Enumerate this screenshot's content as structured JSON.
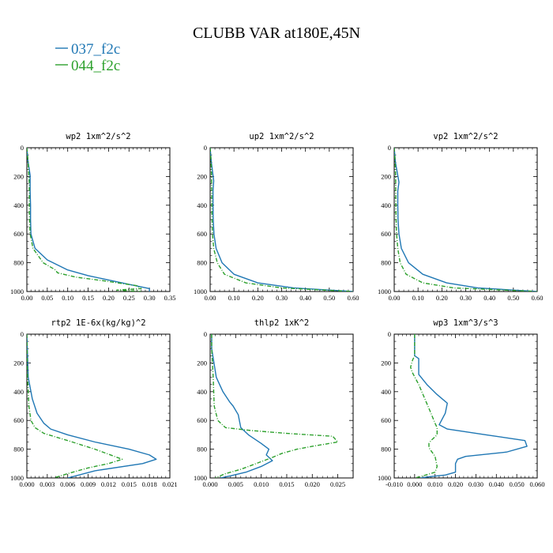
{
  "figure": {
    "title": "CLUBB VAR at180E,45N",
    "legend": [
      {
        "name": "037_f2c",
        "color": "#1f77b4"
      },
      {
        "name": "044_f2c",
        "color": "#2ca02c"
      }
    ]
  },
  "chart_data": [
    {
      "type": "line",
      "title": "wp2   1xm^2/s^2",
      "ylim": [
        1000,
        0
      ],
      "xlim": [
        0,
        0.35
      ],
      "xticks": [
        "0.00",
        "0.05",
        "0.10",
        "0.15",
        "0.20",
        "0.25",
        "0.30",
        "0.35"
      ],
      "yticks": [
        "0",
        "200",
        "400",
        "600",
        "800",
        "1000"
      ],
      "series": [
        {
          "name": "037_f2c",
          "color": "#1f77b4",
          "dash": false,
          "x": [
            0,
            0.003,
            0.008,
            0.008,
            0.008,
            0.009,
            0.009,
            0.01,
            0.02,
            0.05,
            0.1,
            0.15,
            0.2,
            0.25,
            0.3,
            0.3
          ],
          "y": [
            0,
            100,
            190,
            240,
            300,
            400,
            500,
            600,
            700,
            780,
            850,
            890,
            920,
            950,
            980,
            1000
          ]
        },
        {
          "name": "044_f2c",
          "color": "#2ca02c",
          "dash": true,
          "x": [
            0,
            0.003,
            0.005,
            0.006,
            0.006,
            0.006,
            0.008,
            0.015,
            0.04,
            0.07,
            0.075,
            0.12,
            0.2,
            0.27,
            0.28,
            0.22,
            0.28
          ],
          "y": [
            0,
            100,
            200,
            250,
            300,
            450,
            600,
            700,
            800,
            850,
            870,
            900,
            930,
            960,
            980,
            990,
            1000
          ]
        }
      ]
    },
    {
      "type": "line",
      "title": "up2   1xm^2/s^2",
      "ylim": [
        1000,
        0
      ],
      "xlim": [
        0,
        0.6
      ],
      "xticks": [
        "0.00",
        "0.10",
        "0.20",
        "0.30",
        "0.40",
        "0.50",
        "0.60"
      ],
      "yticks": [
        "0",
        "200",
        "400",
        "600",
        "800",
        "1000"
      ],
      "series": [
        {
          "name": "037_f2c",
          "color": "#1f77b4",
          "dash": false,
          "x": [
            0,
            0.005,
            0.015,
            0.012,
            0.012,
            0.013,
            0.016,
            0.025,
            0.05,
            0.1,
            0.2,
            0.35,
            0.6
          ],
          "y": [
            0,
            100,
            230,
            300,
            400,
            500,
            600,
            700,
            800,
            880,
            940,
            975,
            1000
          ]
        },
        {
          "name": "044_f2c",
          "color": "#2ca02c",
          "dash": true,
          "x": [
            0,
            0.004,
            0.006,
            0.007,
            0.008,
            0.01,
            0.015,
            0.03,
            0.06,
            0.15,
            0.3,
            0.6
          ],
          "y": [
            0,
            100,
            200,
            400,
            500,
            600,
            700,
            800,
            880,
            940,
            975,
            1000
          ]
        }
      ]
    },
    {
      "type": "line",
      "title": "vp2   1xm^2/s^2",
      "ylim": [
        1000,
        0
      ],
      "xlim": [
        0,
        0.6
      ],
      "xticks": [
        "0.00",
        "0.10",
        "0.20",
        "0.30",
        "0.40",
        "0.50",
        "0.60"
      ],
      "yticks": [
        "0",
        "200",
        "400",
        "600",
        "800",
        "1000"
      ],
      "series": [
        {
          "name": "037_f2c",
          "color": "#1f77b4",
          "dash": false,
          "x": [
            0,
            0.005,
            0.02,
            0.015,
            0.015,
            0.016,
            0.02,
            0.03,
            0.06,
            0.12,
            0.22,
            0.35,
            0.6
          ],
          "y": [
            0,
            100,
            240,
            300,
            400,
            500,
            600,
            700,
            800,
            880,
            940,
            975,
            1000
          ]
        },
        {
          "name": "044_f2c",
          "color": "#2ca02c",
          "dash": true,
          "x": [
            0,
            0.004,
            0.006,
            0.007,
            0.008,
            0.01,
            0.015,
            0.025,
            0.05,
            0.12,
            0.25,
            0.6
          ],
          "y": [
            0,
            100,
            200,
            400,
            500,
            600,
            700,
            800,
            880,
            940,
            975,
            1000
          ]
        }
      ]
    },
    {
      "type": "line",
      "title": "rtp2   1E-6x(kg/kg)^2",
      "ylim": [
        1000,
        0
      ],
      "xlim": [
        0,
        0.021
      ],
      "xticks": [
        "0.000",
        "0.003",
        "0.006",
        "0.009",
        "0.012",
        "0.015",
        "0.018",
        "0.021"
      ],
      "yticks": [
        "0",
        "200",
        "400",
        "600",
        "800",
        "1000"
      ],
      "series": [
        {
          "name": "037_f2c",
          "color": "#1f77b4",
          "dash": false,
          "x": [
            0,
            0.0002,
            0.0008,
            0.0015,
            0.0025,
            0.0035,
            0.006,
            0.01,
            0.015,
            0.018,
            0.019,
            0.017,
            0.01,
            0.006
          ],
          "y": [
            0,
            300,
            450,
            550,
            620,
            660,
            700,
            750,
            800,
            840,
            870,
            900,
            950,
            1000
          ]
        },
        {
          "name": "044_f2c",
          "color": "#2ca02c",
          "dash": true,
          "x": [
            0,
            0.0001,
            0.0003,
            0.0006,
            0.0012,
            0.0025,
            0.006,
            0.01,
            0.014,
            0.012,
            0.009,
            0.006,
            0.004
          ],
          "y": [
            0,
            300,
            500,
            600,
            650,
            690,
            740,
            800,
            870,
            900,
            930,
            970,
            1000
          ]
        }
      ]
    },
    {
      "type": "line",
      "title": "thlp2   1xK^2",
      "ylim": [
        1000,
        0
      ],
      "xlim": [
        0,
        0.028
      ],
      "xticks": [
        "0.000",
        "0.005",
        "0.010",
        "0.015",
        "0.020",
        "0.025"
      ],
      "yticks": [
        "0",
        "200",
        "400",
        "600",
        "800",
        "1000"
      ],
      "series": [
        {
          "name": "037_f2c",
          "color": "#1f77b4",
          "dash": false,
          "x": [
            0.0003,
            0.0003,
            0.0012,
            0.0025,
            0.0038,
            0.0045,
            0.0055,
            0.006,
            0.0075,
            0.01,
            0.0115,
            0.011,
            0.0122,
            0.01,
            0.007,
            0.004,
            0.002
          ],
          "y": [
            0,
            100,
            300,
            400,
            470,
            500,
            560,
            650,
            700,
            760,
            800,
            840,
            880,
            920,
            960,
            985,
            1000
          ]
        },
        {
          "name": "044_f2c",
          "color": "#2ca02c",
          "dash": true,
          "x": [
            0.0003,
            0.0003,
            0.0006,
            0.0008,
            0.0015,
            0.003,
            0.008,
            0.015,
            0.024,
            0.025,
            0.02,
            0.017,
            0.014,
            0.012,
            0.009,
            0.006,
            0.003,
            0.001
          ],
          "y": [
            0,
            100,
            300,
            500,
            600,
            650,
            670,
            690,
            710,
            750,
            780,
            800,
            830,
            860,
            900,
            940,
            970,
            1000
          ]
        }
      ]
    },
    {
      "type": "line",
      "title": "wp3   1xm^3/s^3",
      "ylim": [
        1000,
        0
      ],
      "xlim": [
        -0.01,
        0.06
      ],
      "xticks": [
        "-0.010",
        "0.000",
        "0.010",
        "0.020",
        "0.030",
        "0.040",
        "0.050",
        "0.060"
      ],
      "yticks": [
        "0",
        "200",
        "400",
        "600",
        "800",
        "1000"
      ],
      "series": [
        {
          "name": "037_f2c",
          "color": "#1f77b4",
          "dash": false,
          "x": [
            0,
            0,
            0.002,
            0.002,
            0.006,
            0.011,
            0.016,
            0.015,
            0.012,
            0.016,
            0.035,
            0.054,
            0.055,
            0.045,
            0.025,
            0.021,
            0.02,
            0.02,
            0.015,
            0.008,
            0.003
          ],
          "y": [
            0,
            150,
            170,
            280,
            350,
            420,
            480,
            550,
            630,
            660,
            700,
            740,
            780,
            820,
            850,
            870,
            900,
            960,
            980,
            990,
            1000
          ]
        },
        {
          "name": "044_f2c",
          "color": "#2ca02c",
          "dash": true,
          "x": [
            0,
            0,
            -0.001,
            -0.002,
            -0.001,
            0.002,
            0.005,
            0.008,
            0.01,
            0.011,
            0.011,
            0.008,
            0.007,
            0.007,
            0.008,
            0.01,
            0.011,
            0.01,
            0.003,
            0
          ],
          "y": [
            0,
            150,
            180,
            230,
            270,
            350,
            450,
            550,
            620,
            650,
            700,
            740,
            760,
            790,
            810,
            850,
            920,
            960,
            990,
            1000
          ]
        }
      ]
    }
  ]
}
